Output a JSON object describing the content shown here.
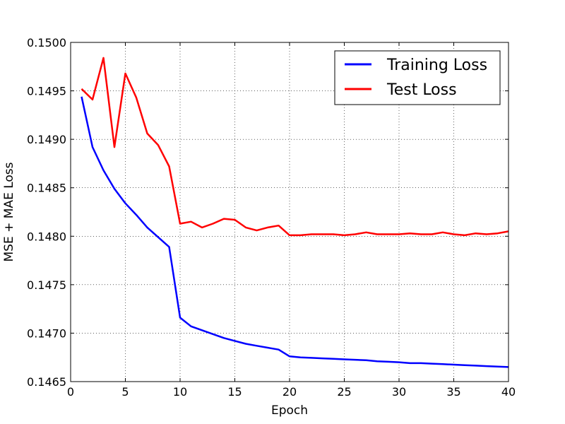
{
  "chart_data": {
    "type": "line",
    "title": "",
    "xlabel": "Epoch",
    "ylabel": "MSE + MAE Loss",
    "xlim": [
      0,
      40
    ],
    "ylim": [
      0.1465,
      0.15
    ],
    "x_ticks": [
      0,
      5,
      10,
      15,
      20,
      25,
      30,
      35,
      40
    ],
    "x_tick_labels": [
      "0",
      "5",
      "10",
      "15",
      "20",
      "25",
      "30",
      "35",
      "40"
    ],
    "y_ticks": [
      0.1465,
      0.147,
      0.1475,
      0.148,
      0.1485,
      0.149,
      0.1495,
      0.15
    ],
    "y_tick_labels": [
      "0.1465",
      "0.1470",
      "0.1475",
      "0.1480",
      "0.1485",
      "0.1490",
      "0.1495",
      "0.1500"
    ],
    "grid": true,
    "legend_position": "top-right",
    "x": [
      1,
      2,
      3,
      4,
      5,
      6,
      7,
      8,
      9,
      10,
      11,
      12,
      13,
      14,
      15,
      16,
      17,
      18,
      19,
      20,
      21,
      22,
      23,
      24,
      25,
      26,
      27,
      28,
      29,
      30,
      31,
      32,
      33,
      34,
      35,
      36,
      37,
      38,
      39,
      40
    ],
    "series": [
      {
        "name": "Training Loss",
        "color": "#0000ff",
        "values": [
          0.14944,
          0.14892,
          0.14868,
          0.14849,
          0.14834,
          0.14822,
          0.14809,
          0.14799,
          0.14789,
          0.14716,
          0.14707,
          0.14703,
          0.14699,
          0.14695,
          0.14692,
          0.14689,
          0.14687,
          0.14685,
          0.14683,
          0.14676,
          0.14675,
          0.146745,
          0.14674,
          0.146735,
          0.14673,
          0.146725,
          0.14672,
          0.14671,
          0.146705,
          0.1467,
          0.14669,
          0.14669,
          0.146685,
          0.14668,
          0.146675,
          0.14667,
          0.146665,
          0.14666,
          0.146655,
          0.14665
        ]
      },
      {
        "name": "Test Loss",
        "color": "#ff0000",
        "values": [
          0.14952,
          0.14941,
          0.14984,
          0.14892,
          0.14968,
          0.14943,
          0.14906,
          0.14894,
          0.14872,
          0.14813,
          0.14815,
          0.14809,
          0.14813,
          0.14818,
          0.14817,
          0.14809,
          0.14806,
          0.14809,
          0.14811,
          0.14801,
          0.14801,
          0.14802,
          0.14802,
          0.14802,
          0.14801,
          0.14802,
          0.14804,
          0.14802,
          0.14802,
          0.14802,
          0.14803,
          0.14802,
          0.14802,
          0.14804,
          0.14802,
          0.14801,
          0.14803,
          0.14802,
          0.14803,
          0.14805
        ]
      }
    ]
  }
}
